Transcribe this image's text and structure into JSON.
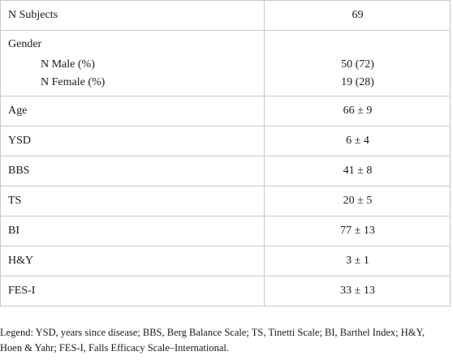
{
  "table": {
    "subjects": {
      "label": "N Subjects",
      "value": "69"
    },
    "gender": {
      "label": "Gender",
      "male_label": "N Male (%)",
      "male_value": "50 (72)",
      "female_label": "N Female (%)",
      "female_value": "19 (28)"
    },
    "rows": [
      {
        "label": "Age",
        "value": "66 ± 9"
      },
      {
        "label": "YSD",
        "value": "6 ± 4"
      },
      {
        "label": "BBS",
        "value": "41 ± 8"
      },
      {
        "label": "TS",
        "value": "20 ± 5"
      },
      {
        "label": "BI",
        "value": "77 ± 13"
      },
      {
        "label": "H&Y",
        "value": "3 ± 1"
      },
      {
        "label": "FES-I",
        "value": "33 ± 13"
      }
    ]
  },
  "legend": "Legend: YSD, years since disease; BBS, Berg Balance Scale; TS, Tinetti Scale; BI, Barthel Index; H&Y, Hoen & Yahr; FES-I, Falls Efficacy Scale–International."
}
